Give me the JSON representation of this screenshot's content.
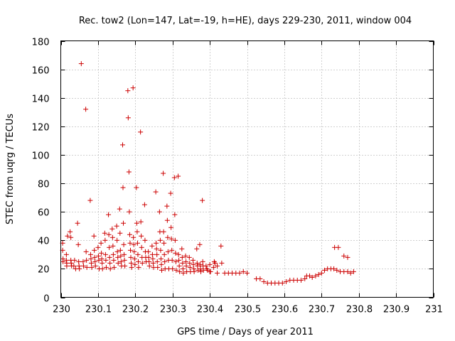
{
  "chart_data": {
    "type": "scatter",
    "title": "Rec. tow2 (Lon=147, Lat=-19, h=HE), days 229-230, 2011, window 004",
    "xlabel": "GPS time / Days of year 2011",
    "ylabel": "STEC from uqrg / TECUs",
    "xlim": [
      230,
      231
    ],
    "ylim": [
      0,
      180
    ],
    "xticks": [
      230,
      230.1,
      230.2,
      230.3,
      230.4,
      230.5,
      230.6,
      230.7,
      230.8,
      230.9,
      231
    ],
    "xtick_labels": [
      "230",
      "230.1",
      "230.2",
      "230.3",
      "230.4",
      "230.5",
      "230.6",
      "230.7",
      "230.8",
      "230.9",
      "231"
    ],
    "yticks": [
      0,
      20,
      40,
      60,
      80,
      100,
      120,
      140,
      160,
      180
    ],
    "ytick_labels": [
      "0",
      "20",
      "40",
      "60",
      "80",
      "100",
      "120",
      "140",
      "160",
      "180"
    ],
    "grid": true,
    "marker": "plus",
    "color": "#cc0000",
    "series": [
      {
        "name": "STEC",
        "points": [
          [
            230.005,
            38
          ],
          [
            230.005,
            33
          ],
          [
            230.006,
            27
          ],
          [
            230.006,
            25
          ],
          [
            230.015,
            30
          ],
          [
            230.015,
            26
          ],
          [
            230.016,
            24
          ],
          [
            230.016,
            22
          ],
          [
            230.018,
            43
          ],
          [
            230.025,
            46
          ],
          [
            230.027,
            42
          ],
          [
            230.027,
            26
          ],
          [
            230.028,
            24
          ],
          [
            230.029,
            22
          ],
          [
            230.035,
            22
          ],
          [
            230.037,
            26
          ],
          [
            230.04,
            20
          ],
          [
            230.045,
            52
          ],
          [
            230.047,
            37
          ],
          [
            230.048,
            25
          ],
          [
            230.049,
            22
          ],
          [
            230.05,
            20
          ],
          [
            230.055,
            164
          ],
          [
            230.06,
            25
          ],
          [
            230.061,
            22
          ],
          [
            230.067,
            132
          ],
          [
            230.068,
            32
          ],
          [
            230.069,
            26
          ],
          [
            230.07,
            21
          ],
          [
            230.079,
            68
          ],
          [
            230.08,
            30
          ],
          [
            230.081,
            27
          ],
          [
            230.082,
            24
          ],
          [
            230.083,
            21
          ],
          [
            230.089,
            43
          ],
          [
            230.09,
            33
          ],
          [
            230.091,
            28
          ],
          [
            230.092,
            25
          ],
          [
            230.093,
            22
          ],
          [
            230.1,
            35
          ],
          [
            230.101,
            29
          ],
          [
            230.102,
            26
          ],
          [
            230.103,
            20
          ],
          [
            230.108,
            38
          ],
          [
            230.109,
            31
          ],
          [
            230.11,
            27
          ],
          [
            230.111,
            24
          ],
          [
            230.112,
            20
          ],
          [
            230.118,
            45
          ],
          [
            230.119,
            40
          ],
          [
            230.12,
            30
          ],
          [
            230.121,
            26
          ],
          [
            230.122,
            21
          ],
          [
            230.128,
            58
          ],
          [
            230.129,
            44
          ],
          [
            230.13,
            35
          ],
          [
            230.131,
            28
          ],
          [
            230.132,
            24
          ],
          [
            230.133,
            20
          ],
          [
            230.138,
            48
          ],
          [
            230.139,
            42
          ],
          [
            230.14,
            36
          ],
          [
            230.141,
            30
          ],
          [
            230.142,
            26
          ],
          [
            230.143,
            21
          ],
          [
            230.15,
            50
          ],
          [
            230.151,
            40
          ],
          [
            230.152,
            32
          ],
          [
            230.153,
            28
          ],
          [
            230.154,
            24
          ],
          [
            230.158,
            62
          ],
          [
            230.159,
            45
          ],
          [
            230.16,
            33
          ],
          [
            230.161,
            29
          ],
          [
            230.162,
            25
          ],
          [
            230.163,
            22
          ],
          [
            230.166,
            107
          ],
          [
            230.167,
            77
          ],
          [
            230.168,
            52
          ],
          [
            230.169,
            37
          ],
          [
            230.17,
            30
          ],
          [
            230.171,
            26
          ],
          [
            230.172,
            22
          ],
          [
            230.18,
            145
          ],
          [
            230.181,
            126
          ],
          [
            230.183,
            88
          ],
          [
            230.184,
            60
          ],
          [
            230.185,
            44
          ],
          [
            230.186,
            38
          ],
          [
            230.187,
            33
          ],
          [
            230.188,
            28
          ],
          [
            230.189,
            24
          ],
          [
            230.19,
            21
          ],
          [
            230.194,
            147
          ],
          [
            230.195,
            42
          ],
          [
            230.196,
            37
          ],
          [
            230.197,
            32
          ],
          [
            230.198,
            27
          ],
          [
            230.199,
            23
          ],
          [
            230.203,
            77
          ],
          [
            230.204,
            52
          ],
          [
            230.205,
            46
          ],
          [
            230.206,
            38
          ],
          [
            230.207,
            30
          ],
          [
            230.208,
            25
          ],
          [
            230.209,
            21
          ],
          [
            230.214,
            116
          ],
          [
            230.215,
            53
          ],
          [
            230.216,
            43
          ],
          [
            230.217,
            35
          ],
          [
            230.218,
            28
          ],
          [
            230.219,
            24
          ],
          [
            230.225,
            65
          ],
          [
            230.226,
            40
          ],
          [
            230.227,
            32
          ],
          [
            230.228,
            28
          ],
          [
            230.229,
            25
          ],
          [
            230.235,
            32
          ],
          [
            230.236,
            28
          ],
          [
            230.237,
            25
          ],
          [
            230.238,
            22
          ],
          [
            230.245,
            36
          ],
          [
            230.246,
            30
          ],
          [
            230.247,
            27
          ],
          [
            230.248,
            24
          ],
          [
            230.249,
            21
          ],
          [
            230.255,
            74
          ],
          [
            230.256,
            38
          ],
          [
            230.257,
            34
          ],
          [
            230.258,
            30
          ],
          [
            230.259,
            25
          ],
          [
            230.26,
            21
          ],
          [
            230.265,
            60
          ],
          [
            230.266,
            46
          ],
          [
            230.267,
            40
          ],
          [
            230.268,
            33
          ],
          [
            230.269,
            27
          ],
          [
            230.27,
            23
          ],
          [
            230.271,
            19
          ],
          [
            230.275,
            87
          ],
          [
            230.276,
            46
          ],
          [
            230.277,
            38
          ],
          [
            230.278,
            30
          ],
          [
            230.279,
            25
          ],
          [
            230.28,
            20
          ],
          [
            230.285,
            64
          ],
          [
            230.286,
            54
          ],
          [
            230.287,
            42
          ],
          [
            230.288,
            32
          ],
          [
            230.289,
            26
          ],
          [
            230.29,
            20
          ],
          [
            230.295,
            73
          ],
          [
            230.296,
            49
          ],
          [
            230.297,
            41
          ],
          [
            230.298,
            33
          ],
          [
            230.299,
            26
          ],
          [
            230.3,
            20
          ],
          [
            230.305,
            84
          ],
          [
            230.306,
            58
          ],
          [
            230.307,
            40
          ],
          [
            230.308,
            31
          ],
          [
            230.309,
            25
          ],
          [
            230.31,
            19
          ],
          [
            230.315,
            85
          ],
          [
            230.316,
            30
          ],
          [
            230.317,
            26
          ],
          [
            230.318,
            22
          ],
          [
            230.319,
            18
          ],
          [
            230.325,
            34
          ],
          [
            230.326,
            28
          ],
          [
            230.327,
            24
          ],
          [
            230.328,
            20
          ],
          [
            230.329,
            17
          ],
          [
            230.335,
            29
          ],
          [
            230.336,
            25
          ],
          [
            230.337,
            22
          ],
          [
            230.338,
            18
          ],
          [
            230.345,
            28
          ],
          [
            230.346,
            24
          ],
          [
            230.347,
            21
          ],
          [
            230.348,
            18
          ],
          [
            230.355,
            26
          ],
          [
            230.356,
            23
          ],
          [
            230.357,
            20
          ],
          [
            230.358,
            18
          ],
          [
            230.365,
            34
          ],
          [
            230.366,
            24
          ],
          [
            230.367,
            22
          ],
          [
            230.368,
            19
          ],
          [
            230.373,
            37
          ],
          [
            230.374,
            23
          ],
          [
            230.375,
            20
          ],
          [
            230.376,
            18
          ],
          [
            230.38,
            68
          ],
          [
            230.381,
            25
          ],
          [
            230.382,
            22
          ],
          [
            230.383,
            19
          ],
          [
            230.392,
            20
          ],
          [
            230.394,
            19
          ],
          [
            230.4,
            18
          ],
          [
            230.402,
            18
          ],
          [
            230.412,
            25
          ],
          [
            230.414,
            24
          ],
          [
            230.42,
            17
          ],
          [
            230.43,
            36
          ],
          [
            230.432,
            24
          ],
          [
            230.44,
            17
          ],
          [
            230.45,
            17
          ],
          [
            230.46,
            17
          ],
          [
            230.47,
            17
          ],
          [
            230.48,
            17
          ],
          [
            230.49,
            18
          ],
          [
            230.5,
            17
          ],
          [
            230.525,
            13
          ],
          [
            230.535,
            13
          ],
          [
            230.545,
            11
          ],
          [
            230.555,
            10
          ],
          [
            230.565,
            10
          ],
          [
            230.575,
            10
          ],
          [
            230.585,
            10
          ],
          [
            230.595,
            10
          ],
          [
            230.605,
            11
          ],
          [
            230.615,
            12
          ],
          [
            230.625,
            12
          ],
          [
            230.635,
            12
          ],
          [
            230.645,
            12
          ],
          [
            230.655,
            13
          ],
          [
            230.66,
            15
          ],
          [
            230.668,
            15
          ],
          [
            230.675,
            14
          ],
          [
            230.684,
            15
          ],
          [
            230.692,
            16
          ],
          [
            230.7,
            17
          ],
          [
            230.708,
            19
          ],
          [
            230.716,
            20
          ],
          [
            230.725,
            20
          ],
          [
            230.733,
            20
          ],
          [
            230.741,
            19
          ],
          [
            230.75,
            18
          ],
          [
            230.76,
            18
          ],
          [
            230.77,
            18
          ],
          [
            230.778,
            17
          ],
          [
            230.786,
            18
          ],
          [
            230.735,
            35
          ],
          [
            230.745,
            35
          ],
          [
            230.76,
            29
          ],
          [
            230.77,
            28
          ],
          [
            230.42,
            22
          ],
          [
            230.41,
            21
          ],
          [
            230.4,
            23
          ],
          [
            230.39,
            22
          ]
        ]
      }
    ]
  }
}
